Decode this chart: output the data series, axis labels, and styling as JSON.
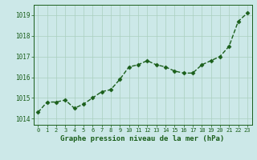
{
  "x": [
    0,
    1,
    2,
    3,
    4,
    5,
    6,
    7,
    8,
    9,
    10,
    11,
    12,
    13,
    14,
    15,
    16,
    17,
    18,
    19,
    20,
    21,
    22,
    23
  ],
  "y": [
    1014.3,
    1014.8,
    1014.8,
    1014.9,
    1014.5,
    1014.7,
    1015.0,
    1015.3,
    1015.4,
    1015.9,
    1016.5,
    1016.6,
    1016.8,
    1016.6,
    1016.5,
    1016.3,
    1016.2,
    1016.2,
    1016.6,
    1016.8,
    1017.0,
    1017.5,
    1018.7,
    1019.1
  ],
  "line_color": "#1a5e1a",
  "marker": "D",
  "marker_size": 2.5,
  "linewidth": 1.0,
  "bg_color": "#cce8e8",
  "grid_color": "#aacfbf",
  "tick_color": "#1a5e1a",
  "label_color": "#1a5e1a",
  "xlabel": "Graphe pression niveau de la mer (hPa)",
  "ylim": [
    1013.7,
    1019.5
  ],
  "yticks": [
    1014,
    1015,
    1016,
    1017,
    1018,
    1019
  ],
  "xtick_labels": [
    "0",
    "1",
    "2",
    "3",
    "4",
    "5",
    "6",
    "7",
    "8",
    "9",
    "10",
    "11",
    "12",
    "13",
    "14",
    "15",
    "16",
    "17",
    "18",
    "19",
    "20",
    "21",
    "22",
    "23"
  ],
  "xlim": [
    -0.5,
    23.5
  ]
}
